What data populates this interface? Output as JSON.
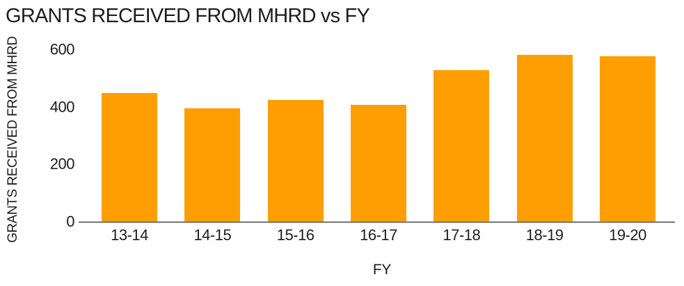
{
  "chart_data": {
    "type": "bar",
    "title": "GRANTS RECEIVED FROM MHRD vs FY",
    "xlabel": "FY",
    "ylabel": "GRANTS RECEIVED FROM MHRD",
    "categories": [
      "13-14",
      "14-15",
      "15-16",
      "16-17",
      "17-18",
      "18-19",
      "19-20"
    ],
    "values": [
      450,
      397,
      425,
      409,
      529,
      584,
      578
    ],
    "yticks": [
      0,
      200,
      400,
      600
    ],
    "ylim": [
      0,
      600
    ],
    "grid": false,
    "legend": "none",
    "bar_color": "#FF9E02",
    "axis_color": "#757575",
    "text_color": "#1D1D1D",
    "background_color": "#FFFFFF"
  }
}
